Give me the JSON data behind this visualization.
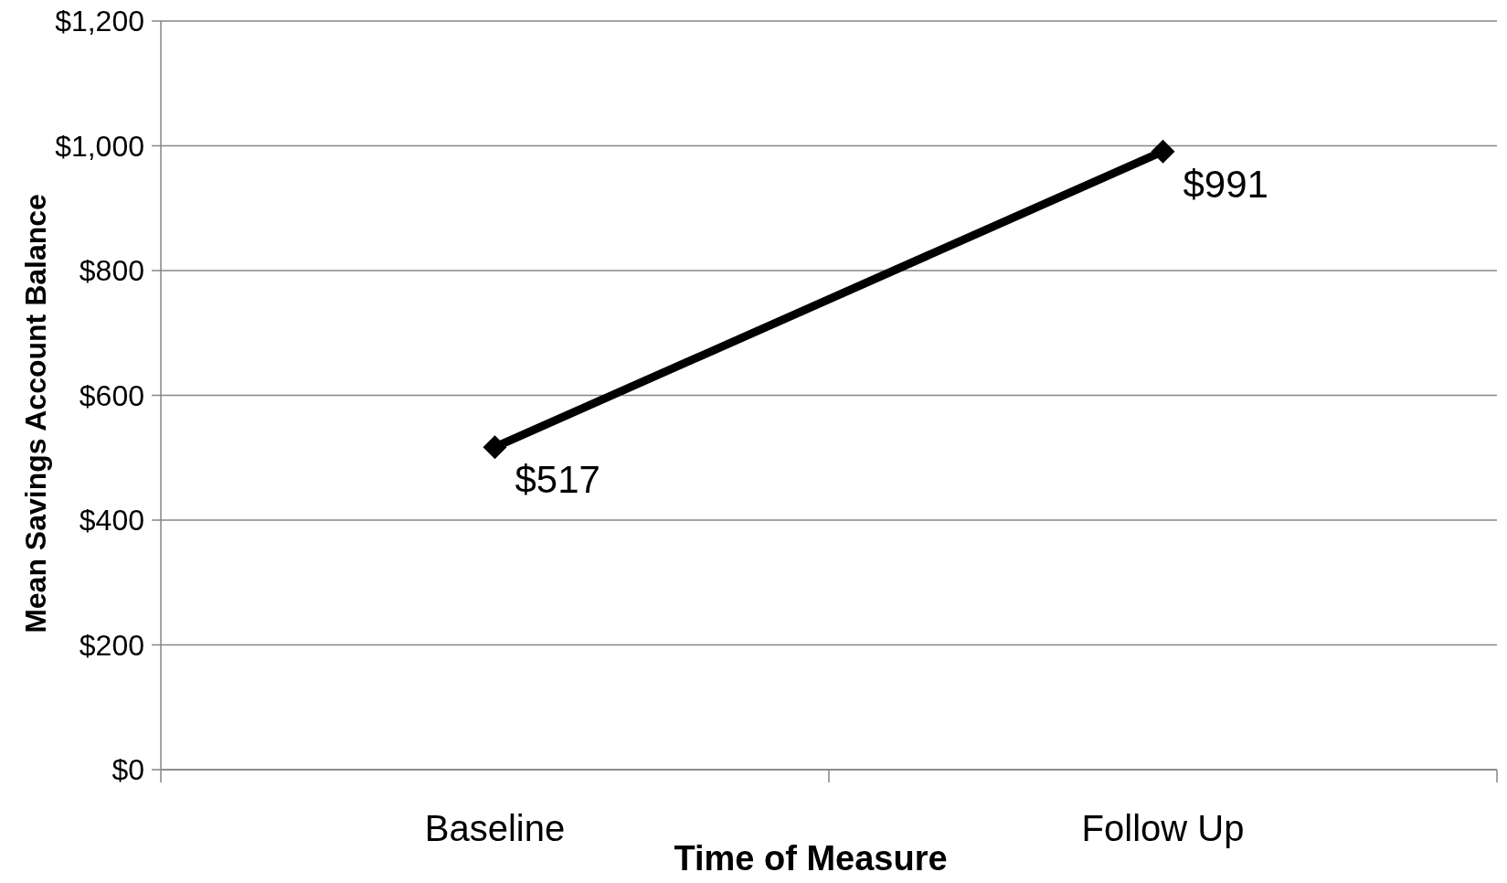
{
  "chart_data": {
    "type": "line",
    "xlabel": "Time of Measure",
    "ylabel": "Mean Savings Account Balance",
    "categories": [
      "Baseline",
      "Follow Up"
    ],
    "series": [
      {
        "color": "#000000",
        "values": [
          517,
          991
        ],
        "value_labels": [
          "$517",
          "$991"
        ]
      }
    ],
    "ylim": [
      0,
      1200
    ],
    "yticks": [
      {
        "value": 0,
        "label": "$0"
      },
      {
        "value": 200,
        "label": "$200"
      },
      {
        "value": 400,
        "label": "$400"
      },
      {
        "value": 600,
        "label": "$600"
      },
      {
        "value": 800,
        "label": "$800"
      },
      {
        "value": 1000,
        "label": "$1,000"
      },
      {
        "value": 1200,
        "label": "$1,200"
      }
    ],
    "grid": "y",
    "marker": "diamond",
    "line_style": "solid"
  }
}
